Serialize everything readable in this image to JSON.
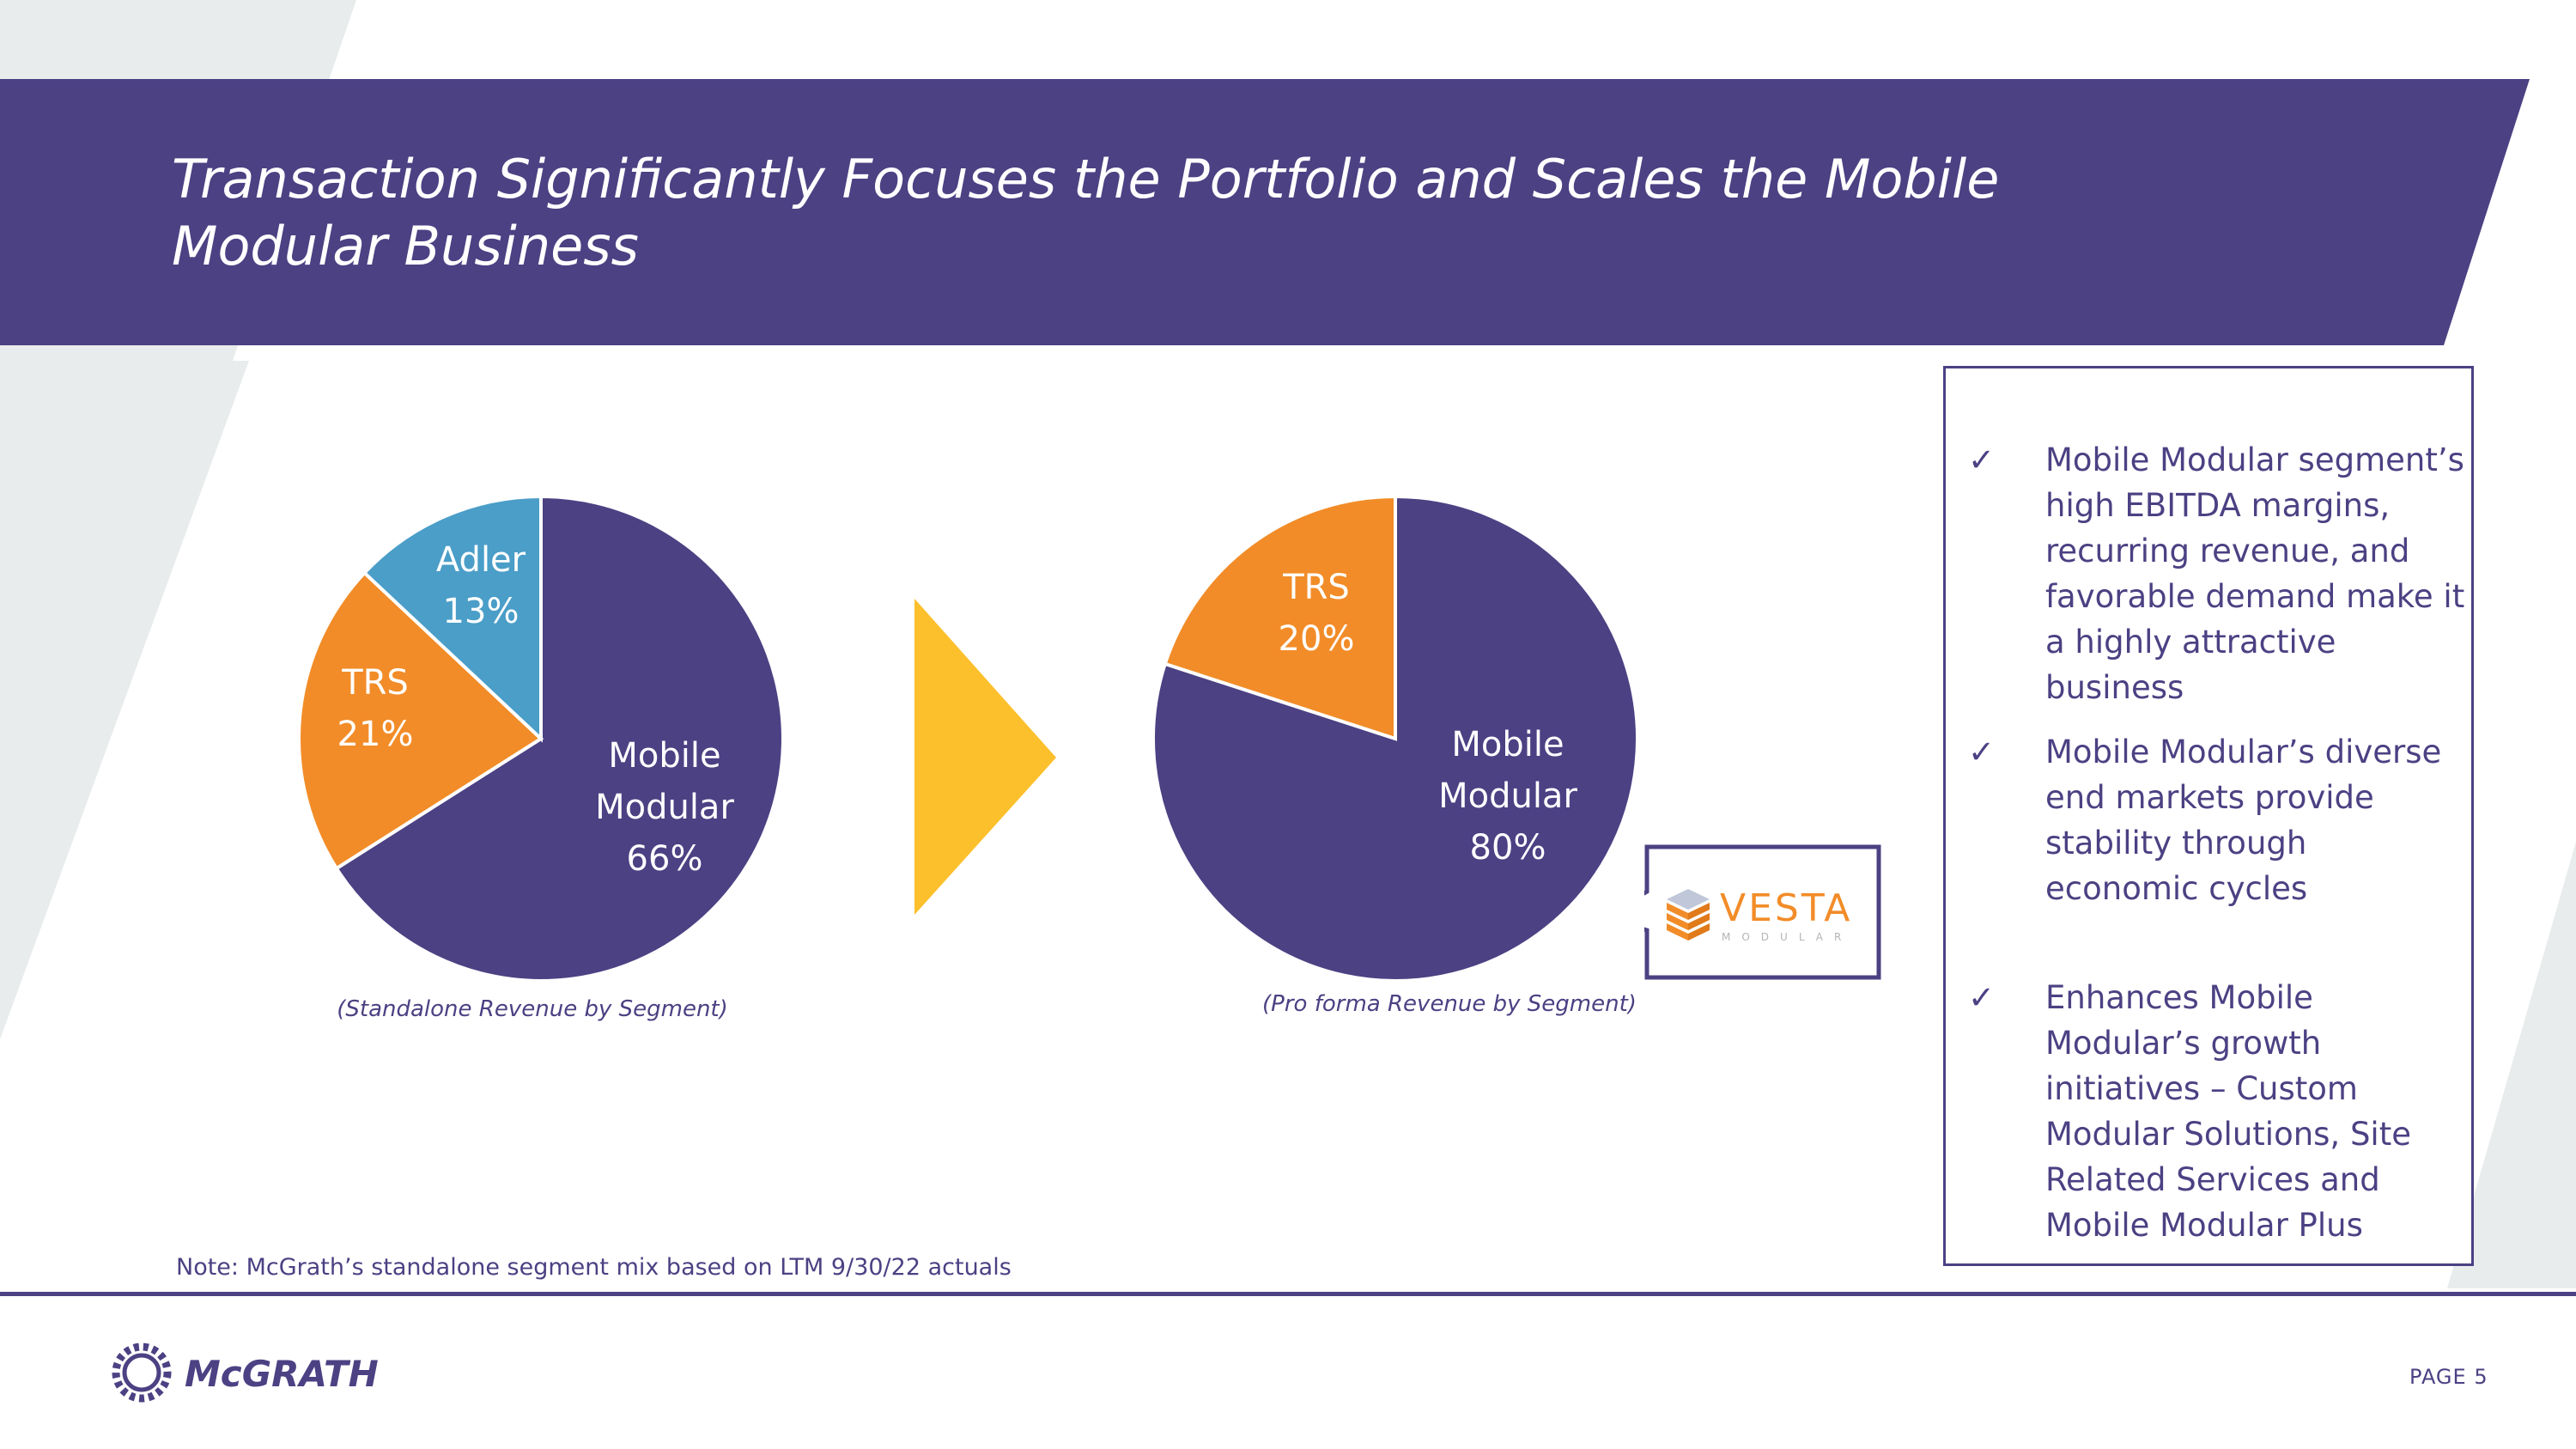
{
  "slide": {
    "title": "Transaction Significantly Focuses the Portfolio and Scales the Mobile Modular Business",
    "note": "Note: McGrath’s standalone segment mix based on LTM 9/30/22 actuals",
    "page_label": "PAGE 5",
    "logo_text": "McGRATH",
    "vesta_logo_text": "VESTA",
    "vesta_logo_subtext": "MODULAR"
  },
  "colors": {
    "purple": "#4b4183",
    "orange": "#f28c28",
    "blue": "#4a9ec8",
    "yellow": "#fcc02c",
    "grey": "#e9ecec"
  },
  "callout": {
    "check_glyph": "✓",
    "items": [
      "Mobile Modular segment’s high EBITDA margins, recurring revenue, and favorable demand make it a highly attractive business",
      "Mobile Modular’s diverse end markets provide stability through economic cycles",
      "Enhances Mobile Modular’s growth initiatives – Custom Modular Solutions, Site Related Services and Mobile Modular Plus"
    ]
  },
  "chart_data": [
    {
      "type": "pie",
      "title": "(Standalone Revenue by Segment)",
      "slices": [
        {
          "name": "Mobile Modular",
          "lines": [
            "Mobile",
            "Modular",
            "66%"
          ],
          "value": 66,
          "color": "#4b4183"
        },
        {
          "name": "TRS",
          "lines": [
            "TRS",
            "21%"
          ],
          "value": 21,
          "color": "#f28c28"
        },
        {
          "name": "Adler",
          "lines": [
            "Adler",
            "13%"
          ],
          "value": 13,
          "color": "#4a9ec8"
        }
      ]
    },
    {
      "type": "pie",
      "title": "(Pro forma Revenue by Segment)",
      "slices": [
        {
          "name": "Mobile Modular",
          "lines": [
            "Mobile",
            "Modular",
            "80%"
          ],
          "value": 80,
          "color": "#4b4183"
        },
        {
          "name": "TRS",
          "lines": [
            "TRS",
            "20%"
          ],
          "value": 20,
          "color": "#f28c28"
        }
      ]
    }
  ]
}
